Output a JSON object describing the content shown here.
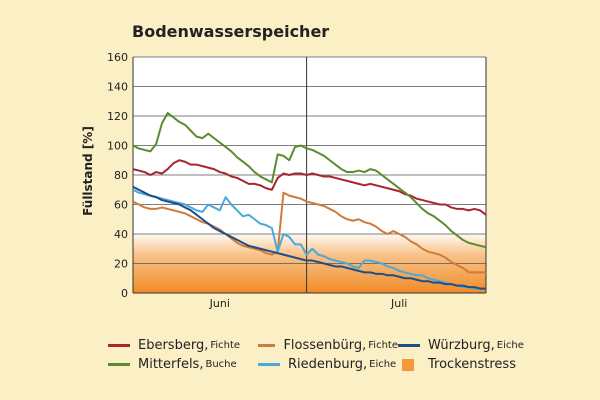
{
  "chart_data": {
    "type": "line",
    "title": "Bodenwasserspeicher",
    "ylabel": "Füllstand [%]",
    "xlabel": "",
    "ylim": [
      0,
      160
    ],
    "yticks": [
      0,
      20,
      40,
      60,
      80,
      100,
      120,
      140,
      160
    ],
    "x_day_range": [
      0,
      61
    ],
    "month_boundary_day": 30,
    "month_labels": [
      {
        "label": "Juni",
        "day": 15
      },
      {
        "label": "Juli",
        "day": 46
      }
    ],
    "grid": true,
    "stress_band": {
      "label": "Trockenstress",
      "color": "#f39a3b",
      "y_top": 40
    },
    "series": [
      {
        "name": "Ebersberg",
        "species": "Fichte",
        "color": "#a8262f",
        "values": [
          84,
          83,
          82,
          80,
          82,
          81,
          84,
          88,
          90,
          89,
          87,
          87,
          86,
          85,
          84,
          82,
          81,
          79,
          78,
          76,
          74,
          74,
          73,
          71,
          70,
          78,
          81,
          80,
          81,
          81,
          80,
          81,
          80,
          79,
          79,
          78,
          77,
          76,
          75,
          74,
          73,
          74,
          73,
          72,
          71,
          70,
          69,
          67,
          66,
          64,
          63,
          62,
          61,
          60,
          60,
          58,
          57,
          57,
          56,
          57,
          56,
          53
        ]
      },
      {
        "name": "Mitterfels",
        "species": "Buche",
        "color": "#5a8d2e",
        "values": [
          100,
          98,
          97,
          96,
          101,
          115,
          122,
          119,
          116,
          114,
          110,
          106,
          105,
          108,
          105,
          102,
          99,
          96,
          92,
          89,
          86,
          82,
          79,
          77,
          75,
          94,
          93,
          90,
          99,
          100,
          98,
          97,
          95,
          93,
          90,
          87,
          84,
          82,
          82,
          83,
          82,
          84,
          83,
          80,
          77,
          74,
          71,
          68,
          65,
          61,
          57,
          54,
          52,
          49,
          46,
          42,
          39,
          36,
          34,
          33,
          32,
          31
        ]
      },
      {
        "name": "Flossenbürg",
        "species": "Fichte",
        "color": "#d17b3a",
        "values": [
          62,
          60,
          58,
          57,
          57,
          58,
          57,
          56,
          55,
          54,
          52,
          50,
          48,
          47,
          45,
          43,
          40,
          37,
          34,
          32,
          31,
          30,
          29,
          27,
          26,
          28,
          68,
          66,
          65,
          64,
          62,
          61,
          60,
          59,
          57,
          55,
          52,
          50,
          49,
          50,
          48,
          47,
          45,
          42,
          40,
          42,
          40,
          38,
          35,
          33,
          30,
          28,
          27,
          26,
          24,
          21,
          19,
          17,
          14,
          14,
          14,
          14
        ]
      },
      {
        "name": "Riedenburg",
        "species": "Eiche",
        "color": "#4aa9dc",
        "values": [
          70,
          68,
          67,
          66,
          65,
          64,
          63,
          62,
          61,
          60,
          58,
          56,
          55,
          60,
          58,
          56,
          65,
          60,
          56,
          52,
          53,
          50,
          47,
          46,
          44,
          28,
          40,
          38,
          33,
          33,
          26,
          30,
          26,
          25,
          23,
          22,
          21,
          20,
          18,
          17,
          22,
          22,
          21,
          20,
          18,
          17,
          15,
          14,
          13,
          12,
          12,
          10,
          9,
          8,
          7,
          6,
          5,
          4,
          4,
          3,
          3,
          3
        ]
      },
      {
        "name": "Würzburg",
        "species": "Eiche",
        "color": "#1f4e86",
        "values": [
          72,
          70,
          68,
          66,
          65,
          63,
          62,
          61,
          60,
          58,
          56,
          53,
          50,
          47,
          44,
          42,
          40,
          38,
          36,
          34,
          32,
          31,
          30,
          29,
          28,
          27,
          26,
          25,
          24,
          23,
          22,
          22,
          21,
          20,
          19,
          18,
          18,
          17,
          16,
          15,
          14,
          14,
          13,
          13,
          12,
          12,
          11,
          10,
          10,
          9,
          8,
          8,
          7,
          7,
          6,
          6,
          5,
          5,
          4,
          4,
          3,
          3
        ]
      }
    ]
  }
}
